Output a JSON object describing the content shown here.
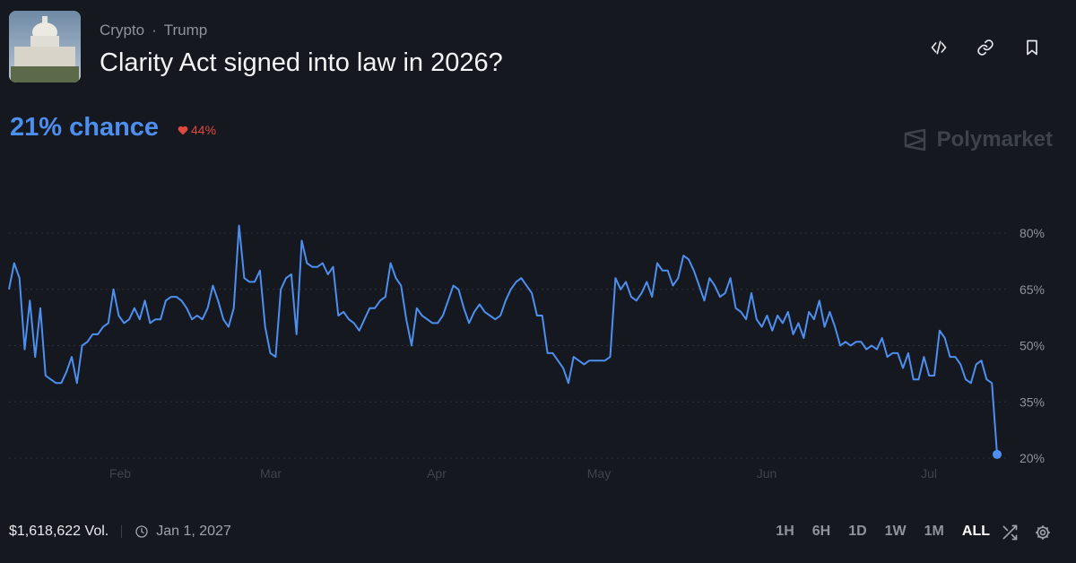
{
  "header": {
    "tags": [
      "Crypto",
      "Trump"
    ],
    "tag_separator": "·",
    "title": "Clarity Act signed into law in 2026?",
    "icons": [
      "embed-code-icon",
      "link-icon",
      "bookmark-icon"
    ]
  },
  "stats": {
    "chance": "21% chance",
    "change": "44%",
    "change_direction": "down"
  },
  "brand": {
    "name": "Polymarket"
  },
  "chart_data": {
    "type": "line",
    "series": [
      {
        "values_pct": [
          65,
          72,
          68,
          49,
          62,
          47,
          60,
          42,
          41,
          40,
          40,
          43,
          47,
          40,
          50,
          51,
          53,
          53,
          55,
          56,
          65,
          58,
          56,
          57,
          60,
          57,
          62,
          56,
          57,
          57,
          62,
          63,
          63,
          62,
          60,
          57,
          58,
          57,
          60,
          66,
          62,
          57,
          55,
          60,
          82,
          68,
          67,
          67,
          70,
          55,
          48,
          47,
          65,
          68,
          69,
          53,
          78,
          72,
          71,
          71,
          72,
          69,
          71,
          58,
          59,
          57,
          56,
          54,
          57,
          60,
          60,
          62,
          63,
          72,
          68,
          66,
          57,
          50,
          60,
          58,
          57,
          56,
          56,
          58,
          62,
          66,
          65,
          60,
          56,
          59,
          61,
          59,
          58,
          57,
          58,
          62,
          65,
          67,
          68,
          66,
          64,
          58,
          58,
          48,
          48,
          46,
          44,
          40,
          47,
          46,
          45,
          46,
          46,
          46,
          46,
          47,
          68,
          65,
          67,
          63,
          62,
          64,
          67,
          63,
          72,
          70,
          70,
          66,
          68,
          74,
          73,
          70,
          66,
          62,
          68,
          66,
          63,
          64,
          68,
          60,
          59,
          57,
          64,
          57,
          55,
          58,
          54,
          58,
          56,
          59,
          53,
          56,
          52,
          59,
          57,
          62,
          55,
          59,
          55,
          50,
          51,
          50,
          51,
          51,
          49,
          50,
          49,
          52,
          47,
          48,
          48,
          44,
          48,
          41,
          41,
          47,
          42,
          42,
          54,
          52,
          47,
          47,
          45,
          41,
          40,
          45,
          46,
          41,
          40,
          21
        ]
      }
    ],
    "x_tick_labels": [
      "Feb",
      "Mar",
      "Apr",
      "May",
      "Jun",
      "Jul"
    ],
    "y_tick_labels": [
      "80%",
      "65%",
      "50%",
      "35%",
      "20%"
    ],
    "ylim": [
      20,
      85
    ],
    "grid": true,
    "line_color": "#4d8ff0",
    "grid_color": "#2e3239"
  },
  "footer": {
    "volume": "$1,618,622 Vol.",
    "end_date": "Jan 1, 2027",
    "ranges": [
      "1H",
      "6H",
      "1D",
      "1W",
      "1M",
      "ALL"
    ],
    "active_range": "ALL"
  },
  "colors": {
    "background": "#15181e",
    "accent": "#4d8ff0",
    "negative": "#e0473f",
    "muted_text": "#8e939c"
  }
}
